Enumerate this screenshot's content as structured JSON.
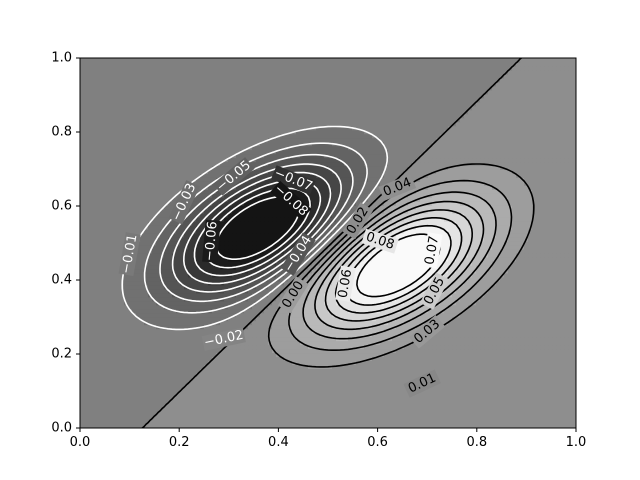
{
  "chart_data": {
    "type": "contour",
    "title": "",
    "xlabel": "",
    "ylabel": "",
    "xlim": [
      0,
      1
    ],
    "ylim": [
      0,
      1
    ],
    "x_ticks": [
      {
        "value": 0.0,
        "label": "0.0"
      },
      {
        "value": 0.2,
        "label": "0.2"
      },
      {
        "value": 0.4,
        "label": "0.4"
      },
      {
        "value": 0.6,
        "label": "0.6"
      },
      {
        "value": 0.8,
        "label": "0.8"
      },
      {
        "value": 1.0,
        "label": "1.0"
      }
    ],
    "y_ticks": [
      {
        "value": 0.0,
        "label": "0.0"
      },
      {
        "value": 0.2,
        "label": "0.2"
      },
      {
        "value": 0.4,
        "label": "0.4"
      },
      {
        "value": 0.6,
        "label": "0.6"
      },
      {
        "value": 0.8,
        "label": "0.8"
      },
      {
        "value": 1.0,
        "label": "1.0"
      }
    ],
    "grid": false,
    "colormap": "gray",
    "filled": true,
    "levels": [
      -0.08,
      -0.07,
      -0.06,
      -0.05,
      -0.04,
      -0.03,
      -0.02,
      -0.01,
      0.0,
      0.01,
      0.02,
      0.03,
      0.04,
      0.05,
      0.06,
      0.07,
      0.08
    ],
    "line_colors": {
      "negative": "#ffffff",
      "non_negative": "#000000"
    },
    "negative_peak": {
      "x": 0.36,
      "y": 0.54
    },
    "positive_peak": {
      "x": 0.64,
      "y": 0.44
    },
    "contour_labels": [
      {
        "text": "−0.01",
        "x": 0.1,
        "y": 0.47,
        "angle": -80,
        "color": "#ffffff"
      },
      {
        "text": "−0.02",
        "x": 0.29,
        "y": 0.24,
        "angle": -12,
        "color": "#ffffff"
      },
      {
        "text": "−0.03",
        "x": 0.21,
        "y": 0.61,
        "angle": -65,
        "color": "#ffffff"
      },
      {
        "text": "−0.05",
        "x": 0.31,
        "y": 0.68,
        "angle": -40,
        "color": "#ffffff"
      },
      {
        "text": "−0.06",
        "x": 0.265,
        "y": 0.505,
        "angle": -85,
        "color": "#ffffff"
      },
      {
        "text": "−0.07",
        "x": 0.43,
        "y": 0.67,
        "angle": 22,
        "color": "#ffffff"
      },
      {
        "text": "−0.08",
        "x": 0.425,
        "y": 0.615,
        "angle": 42,
        "color": "#ffffff"
      },
      {
        "text": "−0.04",
        "x": 0.44,
        "y": 0.47,
        "angle": -58,
        "color": "#ffffff"
      },
      {
        "text": "0.00",
        "x": 0.43,
        "y": 0.36,
        "angle": -58,
        "color": "#000000"
      },
      {
        "text": "0.02",
        "x": 0.56,
        "y": 0.56,
        "angle": -58,
        "color": "#000000"
      },
      {
        "text": "0.04",
        "x": 0.64,
        "y": 0.65,
        "angle": -22,
        "color": "#000000"
      },
      {
        "text": "0.06",
        "x": 0.535,
        "y": 0.39,
        "angle": -80,
        "color": "#000000"
      },
      {
        "text": "0.08",
        "x": 0.605,
        "y": 0.505,
        "angle": 18,
        "color": "#000000"
      },
      {
        "text": "0.07",
        "x": 0.71,
        "y": 0.48,
        "angle": -80,
        "color": "#000000"
      },
      {
        "text": "0.05",
        "x": 0.715,
        "y": 0.37,
        "angle": -62,
        "color": "#000000"
      },
      {
        "text": "0.03",
        "x": 0.7,
        "y": 0.26,
        "angle": -40,
        "color": "#000000"
      },
      {
        "text": "0.01",
        "x": 0.69,
        "y": 0.12,
        "angle": -25,
        "color": "#000000"
      }
    ]
  }
}
